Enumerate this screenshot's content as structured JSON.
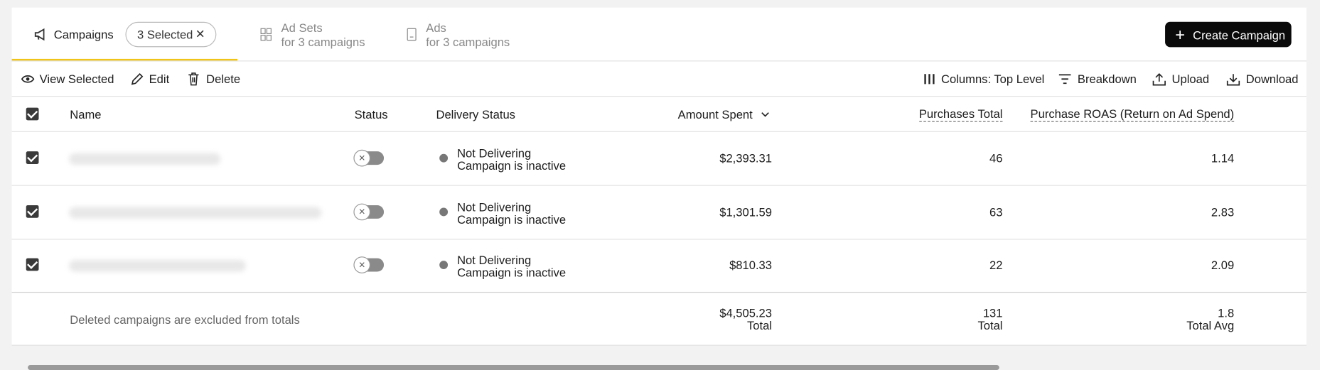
{
  "tabs": [
    {
      "label": "Campaigns",
      "badge": "3 Selected"
    },
    {
      "label": "Ad Sets",
      "sub": "for 3 campaigns"
    },
    {
      "label": "Ads",
      "sub": "for 3 campaigns"
    }
  ],
  "create_button": "Create Campaign",
  "toolbar": {
    "left": [
      "View Selected",
      "Edit",
      "Delete"
    ],
    "right": [
      "Columns: Top Level",
      "Breakdown",
      "Upload",
      "Download"
    ]
  },
  "table": {
    "columns": [
      "Name",
      "Status",
      "Delivery Status",
      "Amount Spent",
      "Purchases Total",
      "Purchase ROAS (Return on Ad Spend)"
    ],
    "rows": [
      {
        "delivery": "Not Delivering",
        "delivery_detail": "Campaign is inactive",
        "amount": "$2,393.31",
        "purchases": 46,
        "roas": 1.14
      },
      {
        "delivery": "Not Delivering",
        "delivery_detail": "Campaign is inactive",
        "amount": "$1,301.59",
        "purchases": 63,
        "roas": 2.83
      },
      {
        "delivery": "Not Delivering",
        "delivery_detail": "Campaign is inactive",
        "amount": "$810.33",
        "purchases": 22,
        "roas": 2.09
      }
    ],
    "footer": {
      "note": "Deleted campaigns are excluded from totals",
      "amount": "$4,505.23",
      "amount_label": "Total",
      "purchases": 131,
      "purchases_label": "Total",
      "roas": 1.8,
      "roas_label": "Total Avg"
    }
  }
}
